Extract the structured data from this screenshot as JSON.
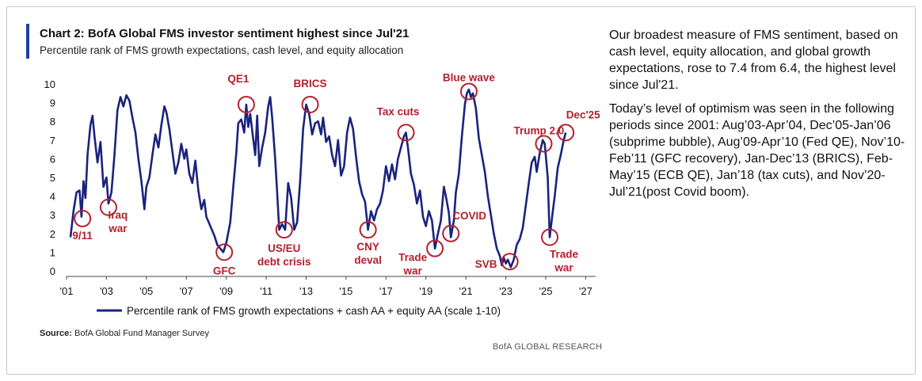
{
  "header": {
    "chart_label": "Chart 2: BofA Global FMS investor sentiment highest since Jul'21",
    "subtitle": "Percentile rank of FMS growth expectations, cash level, and equity allocation"
  },
  "footer": {
    "source_label": "Source:",
    "source_text": "BofA Global Fund Manager Survey",
    "brand": "BofA GLOBAL RESEARCH"
  },
  "commentary": {
    "para1": "Our broadest measure of FMS sentiment, based on cash level, equity allocation, and global growth expectations, rose to 7.4 from 6.4, the highest level since Jul'21.",
    "para2": "Today’s level of optimism was seen in the following periods since 2001: Aug’03-Apr’04, Dec’05-Jan’06 (subprime bubble), Aug’09-Apr’10 (Fed QE), Nov’10-Feb’11 (GFC recovery), Jan-Dec’13 (BRICS), Feb-May’15 (ECB QE), Jan’18 (tax cuts), and Nov’20-Jul’21(post Covid boom)."
  },
  "colors": {
    "line": "#1a237e",
    "annotation": "#b3202e",
    "axis": "#333333"
  },
  "chart_data": {
    "type": "line",
    "title": "Chart 2: BofA Global FMS investor sentiment highest since Jul'21",
    "xlim": [
      2001.0,
      2027.5
    ],
    "ylim": [
      0,
      10
    ],
    "y_ticks": [
      0,
      1,
      2,
      3,
      4,
      5,
      6,
      7,
      8,
      9,
      10
    ],
    "x_ticks": [
      {
        "year": 2001,
        "label": "'01"
      },
      {
        "year": 2003,
        "label": "'03"
      },
      {
        "year": 2005,
        "label": "'05"
      },
      {
        "year": 2007,
        "label": "'07"
      },
      {
        "year": 2009,
        "label": "'09"
      },
      {
        "year": 2011,
        "label": "'11"
      },
      {
        "year": 2013,
        "label": "'13"
      },
      {
        "year": 2015,
        "label": "'15"
      },
      {
        "year": 2017,
        "label": "'17"
      },
      {
        "year": 2019,
        "label": "'19"
      },
      {
        "year": 2021,
        "label": "'21"
      },
      {
        "year": 2023,
        "label": "'23"
      },
      {
        "year": 2025,
        "label": "'25"
      },
      {
        "year": 2027,
        "label": "'27"
      }
    ],
    "legend": "Percentile rank of FMS growth expectations + cash AA + equity AA (scale 1-10)",
    "legend_position": "bottom",
    "series": [
      {
        "name": "Percentile rank of FMS growth expectations + cash AA + equity AA (scale 1-10)",
        "points": [
          [
            2001.2,
            1.8
          ],
          [
            2001.35,
            3.2
          ],
          [
            2001.5,
            4.2
          ],
          [
            2001.65,
            4.3
          ],
          [
            2001.75,
            2.9
          ],
          [
            2001.85,
            4.8
          ],
          [
            2001.95,
            3.9
          ],
          [
            2002.05,
            6.2
          ],
          [
            2002.2,
            7.8
          ],
          [
            2002.3,
            8.3
          ],
          [
            2002.4,
            7.2
          ],
          [
            2002.55,
            5.8
          ],
          [
            2002.7,
            6.9
          ],
          [
            2002.85,
            4.5
          ],
          [
            2003.0,
            5.0
          ],
          [
            2003.1,
            3.6
          ],
          [
            2003.25,
            4.2
          ],
          [
            2003.4,
            6.2
          ],
          [
            2003.55,
            8.6
          ],
          [
            2003.7,
            9.3
          ],
          [
            2003.85,
            8.8
          ],
          [
            2004.0,
            9.4
          ],
          [
            2004.15,
            9.1
          ],
          [
            2004.3,
            8.2
          ],
          [
            2004.45,
            7.4
          ],
          [
            2004.6,
            6.0
          ],
          [
            2004.75,
            4.8
          ],
          [
            2004.9,
            3.3
          ],
          [
            2005.0,
            4.5
          ],
          [
            2005.15,
            5.0
          ],
          [
            2005.3,
            6.2
          ],
          [
            2005.45,
            7.3
          ],
          [
            2005.6,
            6.6
          ],
          [
            2005.75,
            7.8
          ],
          [
            2005.9,
            8.8
          ],
          [
            2006.0,
            8.5
          ],
          [
            2006.15,
            7.6
          ],
          [
            2006.3,
            6.4
          ],
          [
            2006.45,
            5.2
          ],
          [
            2006.6,
            5.8
          ],
          [
            2006.75,
            6.8
          ],
          [
            2006.9,
            6.0
          ],
          [
            2007.0,
            6.5
          ],
          [
            2007.15,
            5.2
          ],
          [
            2007.3,
            4.7
          ],
          [
            2007.45,
            5.9
          ],
          [
            2007.6,
            4.3
          ],
          [
            2007.75,
            3.3
          ],
          [
            2007.9,
            3.8
          ],
          [
            2008.0,
            2.9
          ],
          [
            2008.2,
            2.4
          ],
          [
            2008.4,
            1.9
          ],
          [
            2008.55,
            1.4
          ],
          [
            2008.7,
            1.2
          ],
          [
            2008.85,
            1.0
          ],
          [
            2009.0,
            1.5
          ],
          [
            2009.2,
            2.6
          ],
          [
            2009.35,
            4.5
          ],
          [
            2009.5,
            6.3
          ],
          [
            2009.6,
            7.9
          ],
          [
            2009.75,
            8.1
          ],
          [
            2009.9,
            7.4
          ],
          [
            2010.0,
            8.9
          ],
          [
            2010.1,
            7.7
          ],
          [
            2010.2,
            8.4
          ],
          [
            2010.3,
            7.5
          ],
          [
            2010.45,
            6.2
          ],
          [
            2010.55,
            8.3
          ],
          [
            2010.65,
            5.6
          ],
          [
            2010.8,
            6.6
          ],
          [
            2010.95,
            7.4
          ],
          [
            2011.1,
            8.8
          ],
          [
            2011.2,
            9.3
          ],
          [
            2011.3,
            8.2
          ],
          [
            2011.45,
            6.0
          ],
          [
            2011.55,
            4.2
          ],
          [
            2011.65,
            2.2
          ],
          [
            2011.8,
            2.5
          ],
          [
            2011.95,
            2.2
          ],
          [
            2012.1,
            4.7
          ],
          [
            2012.25,
            3.9
          ],
          [
            2012.4,
            2.2
          ],
          [
            2012.55,
            2.6
          ],
          [
            2012.7,
            4.8
          ],
          [
            2012.85,
            7.6
          ],
          [
            2013.0,
            8.9
          ],
          [
            2013.15,
            8.4
          ],
          [
            2013.3,
            7.3
          ],
          [
            2013.45,
            7.9
          ],
          [
            2013.6,
            8.0
          ],
          [
            2013.75,
            7.3
          ],
          [
            2013.85,
            8.2
          ],
          [
            2014.0,
            6.9
          ],
          [
            2014.15,
            7.2
          ],
          [
            2014.3,
            6.2
          ],
          [
            2014.45,
            5.6
          ],
          [
            2014.6,
            7.0
          ],
          [
            2014.75,
            5.1
          ],
          [
            2014.9,
            5.6
          ],
          [
            2015.05,
            7.4
          ],
          [
            2015.2,
            8.2
          ],
          [
            2015.35,
            7.6
          ],
          [
            2015.5,
            6.1
          ],
          [
            2015.65,
            4.8
          ],
          [
            2015.8,
            4.1
          ],
          [
            2015.95,
            3.7
          ],
          [
            2016.1,
            2.2
          ],
          [
            2016.25,
            3.2
          ],
          [
            2016.4,
            2.7
          ],
          [
            2016.55,
            3.3
          ],
          [
            2016.7,
            3.6
          ],
          [
            2016.85,
            4.3
          ],
          [
            2017.0,
            5.6
          ],
          [
            2017.15,
            4.8
          ],
          [
            2017.3,
            5.7
          ],
          [
            2017.45,
            4.9
          ],
          [
            2017.6,
            6.0
          ],
          [
            2017.75,
            6.6
          ],
          [
            2017.9,
            7.2
          ],
          [
            2018.0,
            7.4
          ],
          [
            2018.1,
            6.6
          ],
          [
            2018.25,
            5.2
          ],
          [
            2018.4,
            4.6
          ],
          [
            2018.55,
            3.6
          ],
          [
            2018.7,
            4.3
          ],
          [
            2018.85,
            2.9
          ],
          [
            2019.0,
            2.4
          ],
          [
            2019.15,
            3.2
          ],
          [
            2019.3,
            2.7
          ],
          [
            2019.45,
            1.2
          ],
          [
            2019.6,
            2.0
          ],
          [
            2019.75,
            2.7
          ],
          [
            2019.9,
            4.5
          ],
          [
            2020.0,
            4.0
          ],
          [
            2020.15,
            3.1
          ],
          [
            2020.25,
            1.8
          ],
          [
            2020.4,
            2.7
          ],
          [
            2020.5,
            4.2
          ],
          [
            2020.65,
            5.2
          ],
          [
            2020.8,
            7.2
          ],
          [
            2020.95,
            8.9
          ],
          [
            2021.05,
            9.5
          ],
          [
            2021.15,
            9.7
          ],
          [
            2021.25,
            9.3
          ],
          [
            2021.35,
            9.5
          ],
          [
            2021.5,
            8.7
          ],
          [
            2021.65,
            7.1
          ],
          [
            2021.8,
            6.2
          ],
          [
            2021.95,
            5.3
          ],
          [
            2022.1,
            4.0
          ],
          [
            2022.25,
            3.0
          ],
          [
            2022.4,
            2.0
          ],
          [
            2022.55,
            1.2
          ],
          [
            2022.7,
            0.8
          ],
          [
            2022.8,
            0.3
          ],
          [
            2022.9,
            0.7
          ],
          [
            2023.0,
            0.4
          ],
          [
            2023.1,
            0.6
          ],
          [
            2023.25,
            0.2
          ],
          [
            2023.4,
            0.6
          ],
          [
            2023.55,
            1.4
          ],
          [
            2023.7,
            1.7
          ],
          [
            2023.85,
            2.3
          ],
          [
            2024.0,
            3.5
          ],
          [
            2024.15,
            4.7
          ],
          [
            2024.3,
            5.8
          ],
          [
            2024.45,
            6.1
          ],
          [
            2024.55,
            5.3
          ],
          [
            2024.7,
            6.3
          ],
          [
            2024.85,
            7.0
          ],
          [
            2024.95,
            6.8
          ],
          [
            2025.1,
            5.0
          ],
          [
            2025.2,
            1.8
          ],
          [
            2025.3,
            2.7
          ],
          [
            2025.45,
            4.0
          ],
          [
            2025.6,
            5.5
          ],
          [
            2025.75,
            6.2
          ],
          [
            2025.9,
            7.0
          ],
          [
            2026.0,
            7.4
          ]
        ]
      }
    ],
    "annotations": [
      {
        "label": "9/11",
        "x": 2001.8,
        "y": 2.8,
        "label_lines": [
          "9/11"
        ]
      },
      {
        "label": "Iraq war",
        "x": 2003.1,
        "y": 3.4,
        "label_lines": [
          "Iraq",
          "war"
        ]
      },
      {
        "label": "GFC",
        "x": 2008.9,
        "y": 1.0,
        "label_lines": [
          "GFC"
        ]
      },
      {
        "label": "QE1",
        "x": 2010.0,
        "y": 8.9,
        "label_lines": [
          "QE1"
        ]
      },
      {
        "label": "US/EU debt crisis",
        "x": 2011.9,
        "y": 2.2,
        "label_lines": [
          "US/EU",
          "debt crisis"
        ]
      },
      {
        "label": "BRICS",
        "x": 2013.2,
        "y": 8.9,
        "label_lines": [
          "BRICS"
        ]
      },
      {
        "label": "CNY deval",
        "x": 2016.1,
        "y": 2.2,
        "label_lines": [
          "CNY",
          "deval"
        ]
      },
      {
        "label": "Tax cuts",
        "x": 2018.0,
        "y": 7.4,
        "label_lines": [
          "Tax cuts"
        ]
      },
      {
        "label": "Trade war",
        "x": 2019.45,
        "y": 1.2,
        "label_lines": [
          "Trade",
          "war"
        ]
      },
      {
        "label": "COVID",
        "x": 2020.25,
        "y": 2.0,
        "label_lines": [
          "COVID"
        ]
      },
      {
        "label": "Blue wave",
        "x": 2021.15,
        "y": 9.6,
        "label_lines": [
          "Blue wave"
        ]
      },
      {
        "label": "SVB",
        "x": 2023.2,
        "y": 0.5,
        "label_lines": [
          "SVB"
        ]
      },
      {
        "label": "Trump 2.0",
        "x": 2024.9,
        "y": 6.8,
        "label_lines": [
          "Trump 2.0"
        ]
      },
      {
        "label": "Trade war",
        "x": 2025.2,
        "y": 1.8,
        "label_lines": [
          "Trade",
          "war"
        ]
      },
      {
        "label": "Dec'25",
        "x": 2026.0,
        "y": 7.4,
        "label_lines": [
          "Dec'25"
        ]
      }
    ]
  }
}
